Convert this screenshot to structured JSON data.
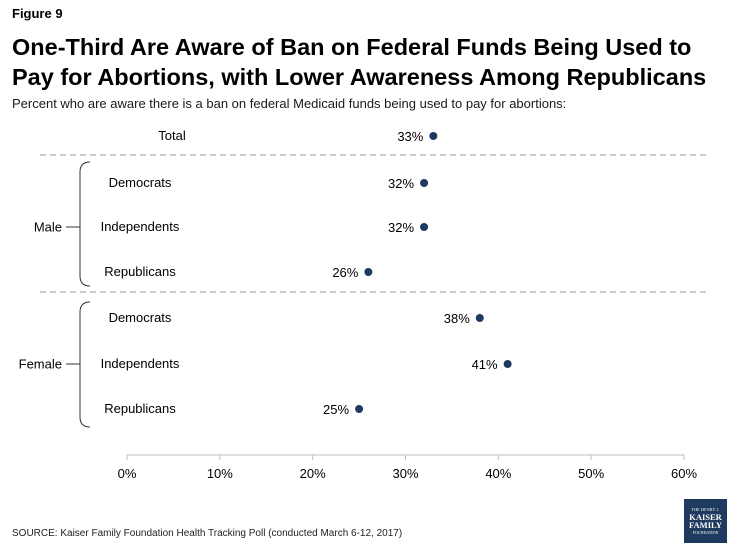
{
  "header": {
    "figure_label": "Figure 9",
    "title": "One-Third Are Aware of Ban on Federal Funds Being Used to Pay for Abortions, with Lower Awareness Among Republicans",
    "subtitle": "Percent who are aware there is a ban on federal Medicaid funds being used to pay for abortions:"
  },
  "chart_data": {
    "type": "scatter",
    "title": "One-Third Are Aware of Ban on Federal Funds Being Used to Pay for Abortions, with Lower Awareness Among Republicans",
    "subtitle": "Percent who are aware there is a ban on federal Medicaid funds being used to pay for abortions:",
    "xlim": [
      0,
      60
    ],
    "x_ticks": [
      "0%",
      "10%",
      "20%",
      "30%",
      "40%",
      "50%",
      "60%"
    ],
    "x_tick_values": [
      0,
      10,
      20,
      30,
      40,
      50,
      60
    ],
    "groups": [
      {
        "group": "",
        "rows": [
          {
            "label": "Total",
            "value": 33,
            "data_label": "33%"
          }
        ]
      },
      {
        "group": "Male",
        "rows": [
          {
            "label": "Democrats",
            "value": 32,
            "data_label": "32%"
          },
          {
            "label": "Independents",
            "value": 32,
            "data_label": "32%"
          },
          {
            "label": "Republicans",
            "value": 26,
            "data_label": "26%"
          }
        ]
      },
      {
        "group": "Female",
        "rows": [
          {
            "label": "Democrats",
            "value": 38,
            "data_label": "38%"
          },
          {
            "label": "Independents",
            "value": 41,
            "data_label": "41%"
          },
          {
            "label": "Republicans",
            "value": 25,
            "data_label": "25%"
          }
        ]
      }
    ],
    "marker_color": "#1f3a5f",
    "grid": false,
    "legend": "none"
  },
  "footer": {
    "source": "SOURCE: Kaiser Family Foundation Health Tracking Poll (conducted March 6-12, 2017)",
    "logo_lines": [
      "THE HENRY J.",
      "KAISER",
      "FAMILY",
      "FOUNDATION"
    ]
  }
}
